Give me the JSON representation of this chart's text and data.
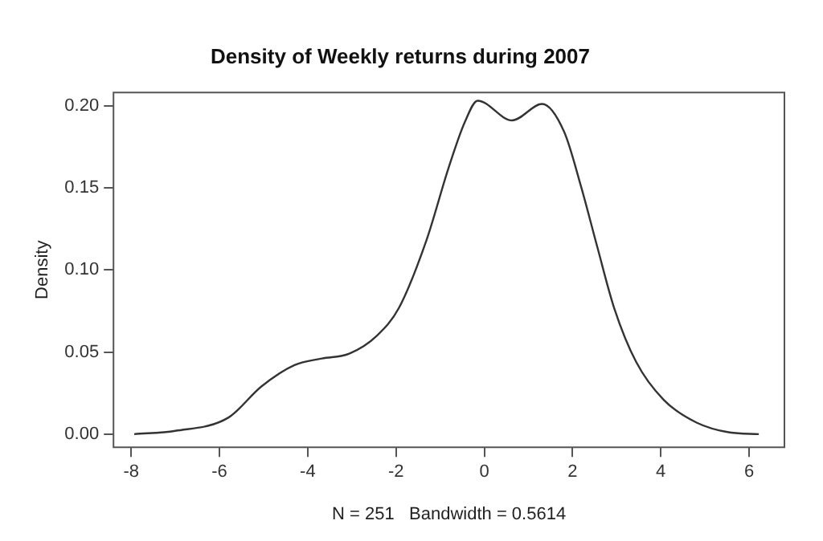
{
  "chart_data": {
    "type": "line",
    "title": "Density of Weekly returns during 2007",
    "xlabel": "N = 251   Bandwidth = 0.5614",
    "ylabel": "Density",
    "series": [
      {
        "color": "#333333",
        "x": [
          -7.93,
          -7.0,
          -5.8,
          -5.05,
          -4.3,
          -3.68,
          -3.06,
          -2.43,
          -1.93,
          -1.31,
          -0.81,
          -0.44,
          -0.15,
          0.63,
          1.31,
          1.81,
          2.19,
          2.56,
          2.94,
          3.44,
          4.06,
          4.81,
          5.56,
          6.22
        ],
        "values": [
          0,
          0.002,
          0.01,
          0.029,
          0.042,
          0.046,
          0.049,
          0.06,
          0.077,
          0.118,
          0.162,
          0.19,
          0.203,
          0.191,
          0.201,
          0.184,
          0.151,
          0.114,
          0.077,
          0.044,
          0.021,
          0.007,
          0.001,
          0
        ]
      }
    ],
    "xlim": [
      -8.4,
      6.8
    ],
    "xticks": [
      -8,
      -6,
      -4,
      -2,
      0,
      2,
      4,
      6
    ],
    "ylim": [
      -0.008,
      0.208
    ],
    "yticks": [
      {
        "value": 0,
        "label": "0.00"
      },
      {
        "value": 0.05,
        "label": "0.05"
      },
      {
        "value": 0.1,
        "label": "0.10"
      },
      {
        "value": 0.15,
        "label": "0.15"
      },
      {
        "value": 0.2,
        "label": "0.20"
      }
    ],
    "grid": false,
    "legend": false,
    "marker": "none",
    "line_style": "solid"
  }
}
